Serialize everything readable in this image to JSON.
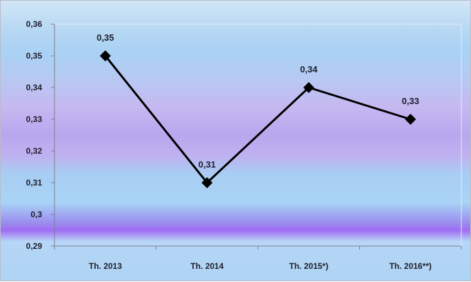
{
  "chart_data": {
    "type": "line",
    "categories": [
      "Th. 2013",
      "Th. 2014",
      "Th. 2015*)",
      "Th. 2016**)"
    ],
    "series": [
      {
        "values": [
          0.35,
          0.31,
          0.34,
          0.33
        ]
      }
    ],
    "data_labels": [
      "0,35",
      "0,31",
      "0,34",
      "0,33"
    ],
    "y_ticks": [
      0.29,
      0.3,
      0.31,
      0.32,
      0.33,
      0.34,
      0.35,
      0.36
    ],
    "y_tick_labels": [
      "0,29",
      "0,3",
      "0,31",
      "0,32",
      "0,33",
      "0,34",
      "0,35",
      "0,36"
    ],
    "ylim": [
      0.29,
      0.36
    ],
    "grid": false,
    "legend": "none",
    "marker": "diamond",
    "line_color": "#000000"
  }
}
